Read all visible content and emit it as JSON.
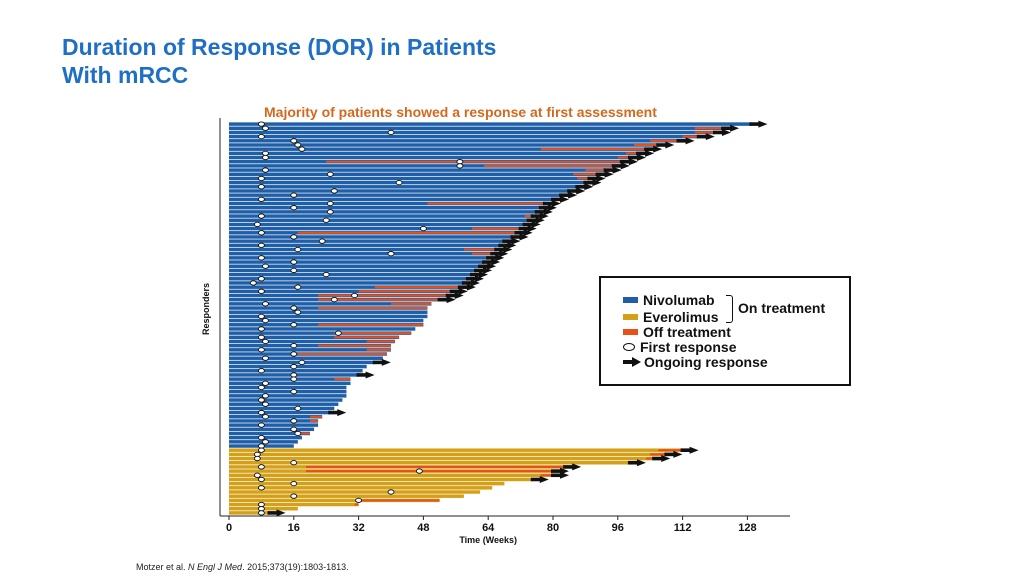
{
  "header": {
    "title_line1": "Duration of Response (DOR) in Patients",
    "title_line2": "With mRCC",
    "subtitle": "Majority of patients showed a response at first assessment"
  },
  "legend": {
    "nivolumab": "Nivolumab",
    "everolimus": "Everolimus",
    "on_treatment": "On treatment",
    "off_treatment": "Off treatment",
    "first_response": "First response",
    "ongoing_response": "Ongoing response"
  },
  "citation": {
    "authors": "Motzer et al. ",
    "journal": "N Engl J Med",
    "details": ". 2015;373(19):1803-1813."
  },
  "colors": {
    "nivolumab": "#1f5fa8",
    "everolimus": "#d4a017",
    "off_treatment": "#e8501a",
    "title": "#1f6fc4",
    "subtitle": "#d2691e"
  },
  "chart_data": {
    "type": "swimmer",
    "xlabel": "Time (Weeks)",
    "ylabel": "Responders",
    "xlim": [
      0,
      136
    ],
    "xticks": [
      0,
      16,
      32,
      48,
      64,
      80,
      96,
      112,
      128
    ],
    "series": [
      {
        "name": "Nivolumab",
        "color": "#1f5fa8",
        "rows": [
          {
            "end": 129,
            "off": null,
            "first": 8,
            "ongoing": true
          },
          {
            "end": 122,
            "off": [
              115,
              122
            ],
            "first": 9,
            "ongoing": true
          },
          {
            "end": 120,
            "off": [
              115,
              120
            ],
            "first": 40,
            "ongoing": true
          },
          {
            "end": 116,
            "off": [
              112,
              116
            ],
            "first": 8,
            "ongoing": true
          },
          {
            "end": 111,
            "off": [
              104,
              111
            ],
            "first": 16,
            "ongoing": true
          },
          {
            "end": 106,
            "off": [
              100,
              106
            ],
            "first": 17,
            "ongoing": true
          },
          {
            "end": 103,
            "off": [
              77,
              103
            ],
            "first": 18,
            "ongoing": true
          },
          {
            "end": 101,
            "off": [
              98,
              101
            ],
            "first": 9,
            "ongoing": true
          },
          {
            "end": 99,
            "off": [
              96,
              99
            ],
            "first": 9,
            "ongoing": true
          },
          {
            "end": 97,
            "off": [
              24,
              97
            ],
            "first": 57,
            "ongoing": true
          },
          {
            "end": 95,
            "off": [
              63,
              95
            ],
            "first": 57,
            "ongoing": true
          },
          {
            "end": 93,
            "off": [
              88,
              93
            ],
            "first": 9,
            "ongoing": true
          },
          {
            "end": 91,
            "off": [
              85,
              91
            ],
            "first": 25,
            "ongoing": true
          },
          {
            "end": 89,
            "off": [
              86,
              89
            ],
            "first": 8,
            "ongoing": true
          },
          {
            "end": 88,
            "off": null,
            "first": 42,
            "ongoing": true
          },
          {
            "end": 86,
            "off": null,
            "first": 8,
            "ongoing": true
          },
          {
            "end": 84,
            "off": null,
            "first": 26,
            "ongoing": true
          },
          {
            "end": 82,
            "off": null,
            "first": 16,
            "ongoing": true
          },
          {
            "end": 80,
            "off": null,
            "first": 8,
            "ongoing": true
          },
          {
            "end": 78,
            "off": [
              49,
              78
            ],
            "first": 25,
            "ongoing": true
          },
          {
            "end": 77,
            "off": null,
            "first": 16,
            "ongoing": true
          },
          {
            "end": 76,
            "off": null,
            "first": 25,
            "ongoing": true
          },
          {
            "end": 75,
            "off": [
              73,
              75
            ],
            "first": 8,
            "ongoing": true
          },
          {
            "end": 74,
            "off": null,
            "first": 24,
            "ongoing": true
          },
          {
            "end": 73,
            "off": null,
            "first": 7,
            "ongoing": true
          },
          {
            "end": 72,
            "off": [
              60,
              72
            ],
            "first": 48,
            "ongoing": true
          },
          {
            "end": 71,
            "off": [
              17,
              71
            ],
            "first": 8,
            "ongoing": true
          },
          {
            "end": 70,
            "off": null,
            "first": 16,
            "ongoing": true
          },
          {
            "end": 68,
            "off": null,
            "first": 23,
            "ongoing": true
          },
          {
            "end": 67,
            "off": null,
            "first": 8,
            "ongoing": true
          },
          {
            "end": 66,
            "off": [
              58,
              66
            ],
            "first": 17,
            "ongoing": true
          },
          {
            "end": 65,
            "off": [
              60,
              65
            ],
            "first": 40,
            "ongoing": true
          },
          {
            "end": 64,
            "off": null,
            "first": 8,
            "ongoing": true
          },
          {
            "end": 63,
            "off": null,
            "first": 16,
            "ongoing": true
          },
          {
            "end": 62,
            "off": null,
            "first": 9,
            "ongoing": true
          },
          {
            "end": 61,
            "off": null,
            "first": 16,
            "ongoing": true
          },
          {
            "end": 60,
            "off": null,
            "first": 24,
            "ongoing": true
          },
          {
            "end": 59,
            "off": null,
            "first": 8,
            "ongoing": true
          },
          {
            "end": 58,
            "off": null,
            "first": 6,
            "ongoing": true
          },
          {
            "end": 57,
            "off": [
              36,
              57
            ],
            "first": 17,
            "ongoing": true
          },
          {
            "end": 55,
            "off": [
              32,
              55
            ],
            "first": 8,
            "ongoing": true
          },
          {
            "end": 54,
            "off": [
              22,
              54
            ],
            "first": 31,
            "ongoing": true
          },
          {
            "end": 52,
            "off": [
              22,
              52
            ],
            "first": 26,
            "ongoing": true
          },
          {
            "end": 50,
            "off": [
              40,
              50
            ],
            "first": 9,
            "ongoing": false
          },
          {
            "end": 49,
            "off": [
              22,
              49
            ],
            "first": 16,
            "ongoing": false
          },
          {
            "end": 49,
            "off": null,
            "first": 17,
            "ongoing": false
          },
          {
            "end": 49,
            "off": null,
            "first": 8,
            "ongoing": false
          },
          {
            "end": 48,
            "off": null,
            "first": 9,
            "ongoing": false
          },
          {
            "end": 48,
            "off": [
              22,
              48
            ],
            "first": 16,
            "ongoing": false
          },
          {
            "end": 46,
            "off": null,
            "first": 8,
            "ongoing": false
          },
          {
            "end": 45,
            "off": [
              26,
              45
            ],
            "first": 27,
            "ongoing": false
          },
          {
            "end": 42,
            "off": [
              26,
              42
            ],
            "first": 8,
            "ongoing": false
          },
          {
            "end": 41,
            "off": [
              34,
              41
            ],
            "first": 9,
            "ongoing": false
          },
          {
            "end": 40,
            "off": [
              22,
              40
            ],
            "first": 16,
            "ongoing": false
          },
          {
            "end": 40,
            "off": [
              34,
              40
            ],
            "first": 8,
            "ongoing": false
          },
          {
            "end": 39,
            "off": [
              17,
              39
            ],
            "first": 16,
            "ongoing": false
          },
          {
            "end": 38,
            "off": null,
            "first": 9,
            "ongoing": false
          },
          {
            "end": 36,
            "off": null,
            "first": 18,
            "ongoing": true
          },
          {
            "end": 34,
            "off": null,
            "first": 16,
            "ongoing": false
          },
          {
            "end": 33,
            "off": null,
            "first": 8,
            "ongoing": false
          },
          {
            "end": 32,
            "off": null,
            "first": 16,
            "ongoing": true
          },
          {
            "end": 30,
            "off": [
              26,
              30
            ],
            "first": 16,
            "ongoing": false
          },
          {
            "end": 30,
            "off": null,
            "first": 9,
            "ongoing": false
          },
          {
            "end": 29,
            "off": null,
            "first": 8,
            "ongoing": false
          },
          {
            "end": 29,
            "off": null,
            "first": 16,
            "ongoing": false
          },
          {
            "end": 29,
            "off": null,
            "first": 9,
            "ongoing": false
          },
          {
            "end": 28,
            "off": null,
            "first": 8,
            "ongoing": false
          },
          {
            "end": 27,
            "off": null,
            "first": 9,
            "ongoing": false
          },
          {
            "end": 26,
            "off": null,
            "first": 17,
            "ongoing": false
          },
          {
            "end": 25,
            "off": null,
            "first": 8,
            "ongoing": true
          },
          {
            "end": 23,
            "off": [
              20,
              23
            ],
            "first": 9,
            "ongoing": false
          },
          {
            "end": 22,
            "off": [
              20,
              22
            ],
            "first": 16,
            "ongoing": false
          },
          {
            "end": 22,
            "off": null,
            "first": 8,
            "ongoing": false
          },
          {
            "end": 21,
            "off": null,
            "first": 16,
            "ongoing": false
          },
          {
            "end": 20,
            "off": [
              17,
              20
            ],
            "first": 17,
            "ongoing": false
          },
          {
            "end": 18,
            "off": null,
            "first": 8,
            "ongoing": false
          },
          {
            "end": 17,
            "off": null,
            "first": 9,
            "ongoing": false
          },
          {
            "end": 16,
            "off": null,
            "first": 8,
            "ongoing": false
          }
        ]
      },
      {
        "name": "Everolimus",
        "color": "#d4a017",
        "rows": [
          {
            "end": 112,
            "off": [
              106,
              112
            ],
            "first": 8,
            "ongoing": true
          },
          {
            "end": 108,
            "off": [
              104,
              108
            ],
            "first": 7,
            "ongoing": true
          },
          {
            "end": 105,
            "off": [
              103,
              105
            ],
            "first": 7,
            "ongoing": true
          },
          {
            "end": 99,
            "off": null,
            "first": 16,
            "ongoing": true
          },
          {
            "end": 83,
            "off": [
              19,
              83
            ],
            "first": 8,
            "ongoing": true
          },
          {
            "end": 80,
            "off": [
              19,
              80
            ],
            "first": 47,
            "ongoing": true
          },
          {
            "end": 80,
            "off": [
              77,
              80
            ],
            "first": 7,
            "ongoing": true
          },
          {
            "end": 75,
            "off": null,
            "first": 8,
            "ongoing": true
          },
          {
            "end": 68,
            "off": null,
            "first": 16,
            "ongoing": false
          },
          {
            "end": 65,
            "off": null,
            "first": 8,
            "ongoing": false
          },
          {
            "end": 62,
            "off": null,
            "first": 40,
            "ongoing": false
          },
          {
            "end": 58,
            "off": null,
            "first": 16,
            "ongoing": false
          },
          {
            "end": 52,
            "off": [
              32,
              52
            ],
            "first": 32,
            "ongoing": false
          },
          {
            "end": 32,
            "off": [
              31,
              32
            ],
            "first": 8,
            "ongoing": false
          },
          {
            "end": 17,
            "off": null,
            "first": 8,
            "ongoing": false
          },
          {
            "end": 10,
            "off": null,
            "first": 8,
            "ongoing": true
          }
        ]
      }
    ]
  }
}
